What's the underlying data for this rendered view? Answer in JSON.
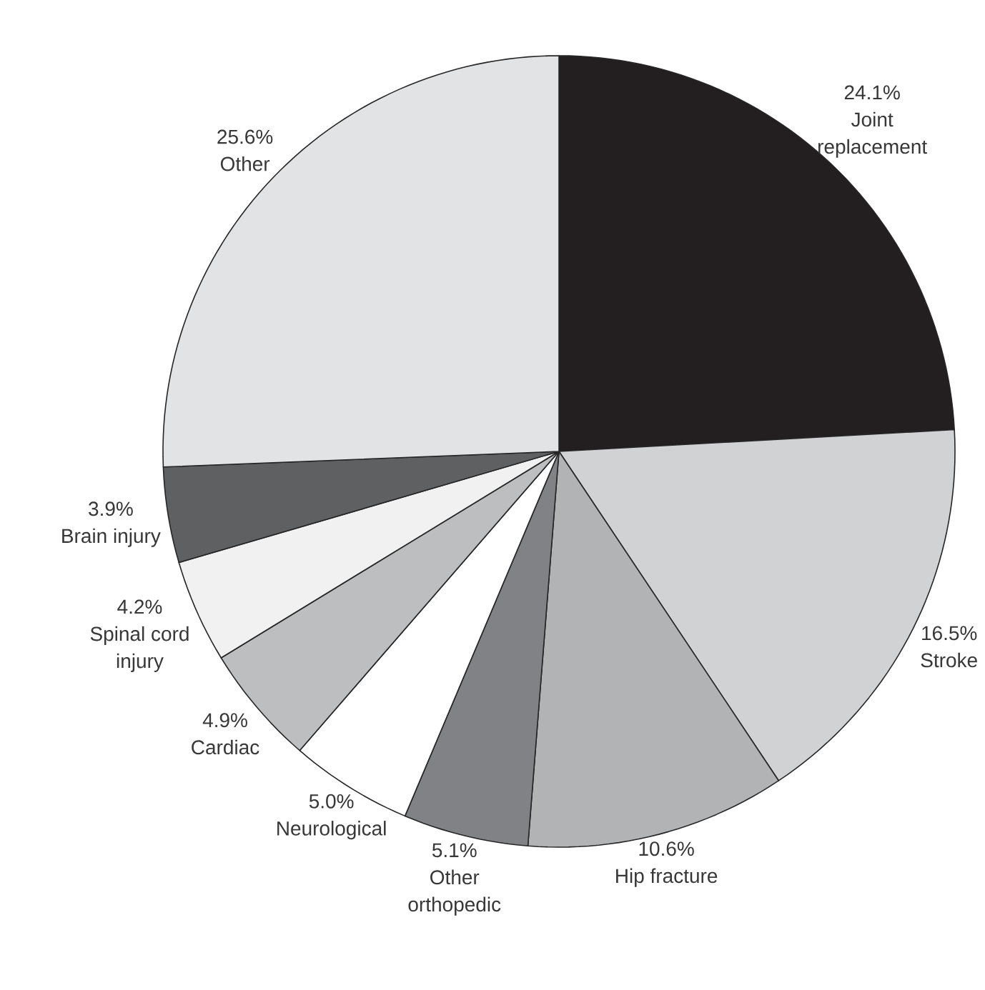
{
  "chart_data": {
    "type": "pie",
    "categories": [
      "Joint replacement",
      "Stroke",
      "Hip fracture",
      "Other orthopedic",
      "Neurological",
      "Cardiac",
      "Spinal cord injury",
      "Brain injury",
      "Other"
    ],
    "values": [
      24.1,
      16.5,
      10.6,
      5.1,
      5.0,
      4.9,
      4.2,
      3.9,
      25.6
    ],
    "value_labels": [
      "24.1%",
      "16.5%",
      "10.6%",
      "5.1%",
      "5.0%",
      "4.9%",
      "4.2%",
      "3.9%",
      "25.6%"
    ],
    "colors": [
      "#231f20",
      "#d1d2d4",
      "#b1b3b5",
      "#808285",
      "#ffffff",
      "#bcbec0",
      "#f1f1f2",
      "#5f6062",
      "#e2e3e5"
    ]
  }
}
